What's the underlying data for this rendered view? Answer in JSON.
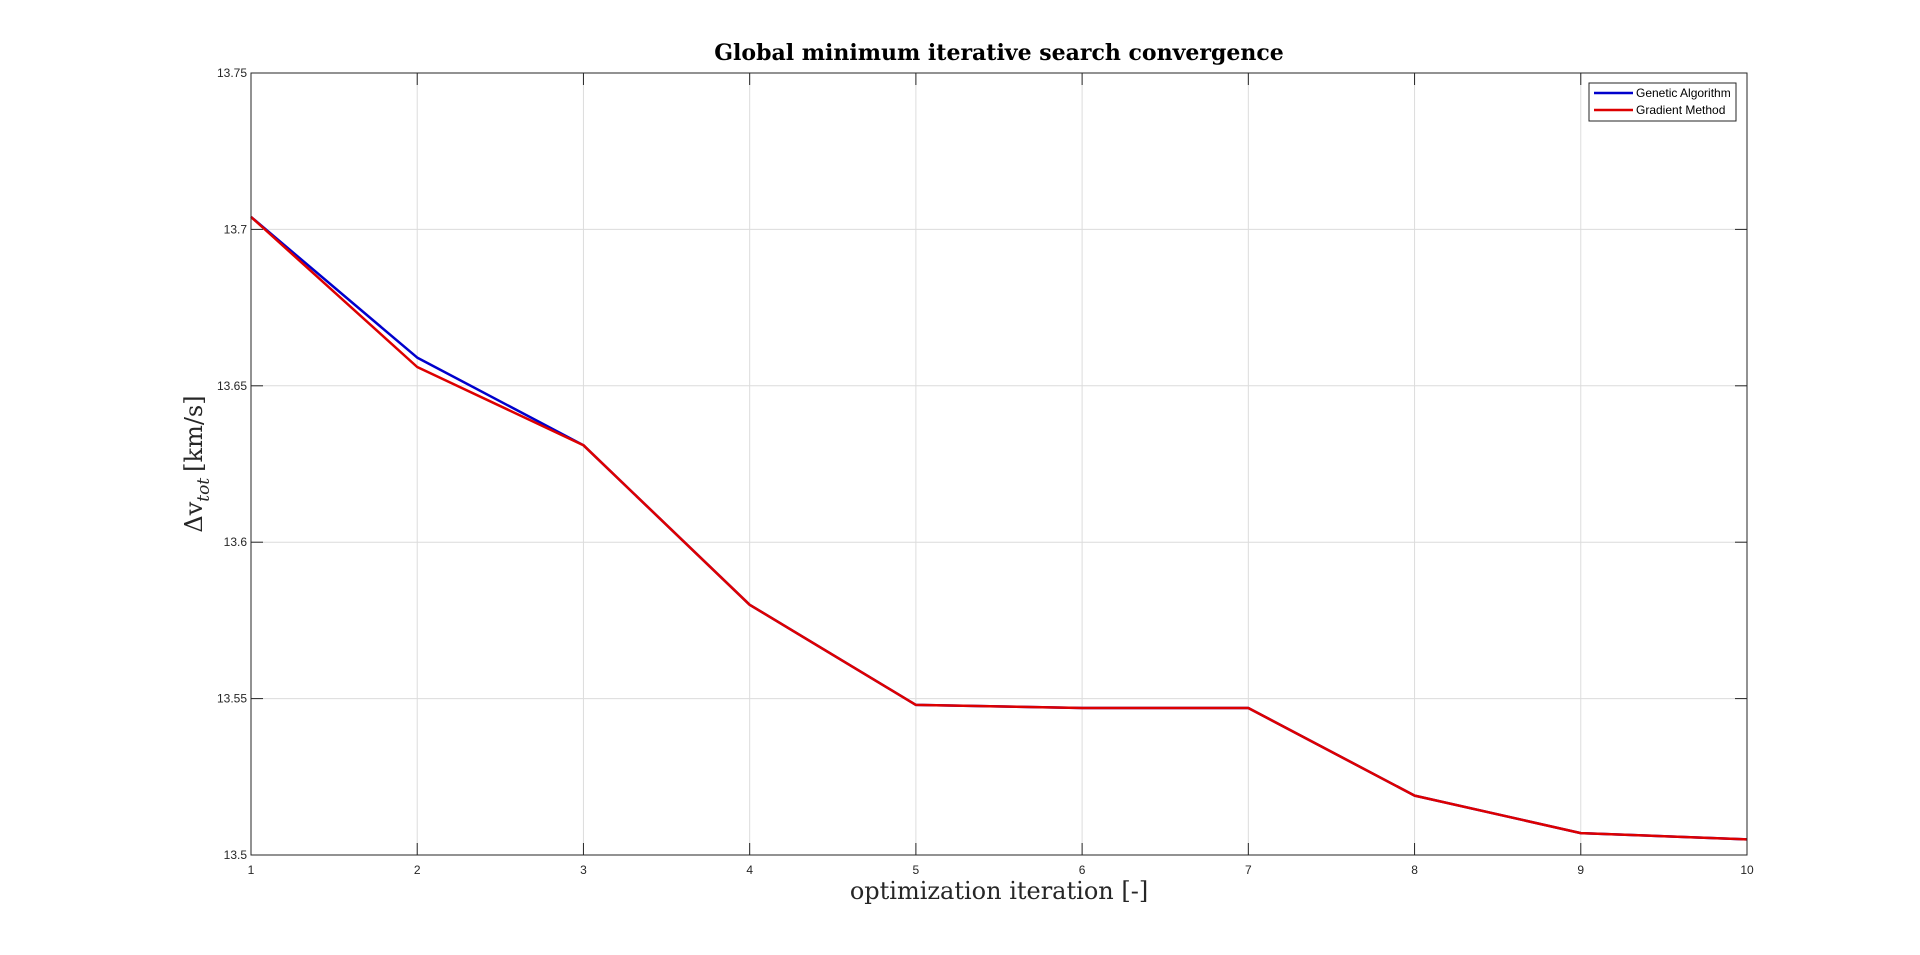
{
  "chart_data": {
    "type": "line",
    "title": "Global minimum iterative search convergence",
    "xlabel": "optimization iteration [-]",
    "ylabel": "Δv_tot [km/s]",
    "ylabel_main": "Δv",
    "ylabel_sub": "tot",
    "ylabel_unit": "[km/s]",
    "xlim": [
      1,
      10
    ],
    "ylim": [
      13.5,
      13.75
    ],
    "x_ticks": [
      1,
      2,
      3,
      4,
      5,
      6,
      7,
      8,
      9,
      10
    ],
    "y_ticks": [
      13.5,
      13.55,
      13.6,
      13.65,
      13.7,
      13.75
    ],
    "y_tick_labels": [
      "13.5",
      "13.55",
      "13.6",
      "13.65",
      "13.7",
      "13.75"
    ],
    "grid": true,
    "legend_position": "top-right",
    "x": [
      1,
      2,
      3,
      4,
      5,
      6,
      7,
      8,
      9,
      10
    ],
    "series": [
      {
        "name": "Genetic Algorithm",
        "color": "#0000cc",
        "values": [
          13.704,
          13.659,
          13.631,
          13.58,
          13.548,
          13.547,
          13.547,
          13.519,
          13.507,
          13.505
        ]
      },
      {
        "name": "Gradient Method",
        "color": "#dd0000",
        "values": [
          13.704,
          13.656,
          13.631,
          13.58,
          13.548,
          13.547,
          13.547,
          13.519,
          13.507,
          13.505
        ]
      }
    ]
  }
}
